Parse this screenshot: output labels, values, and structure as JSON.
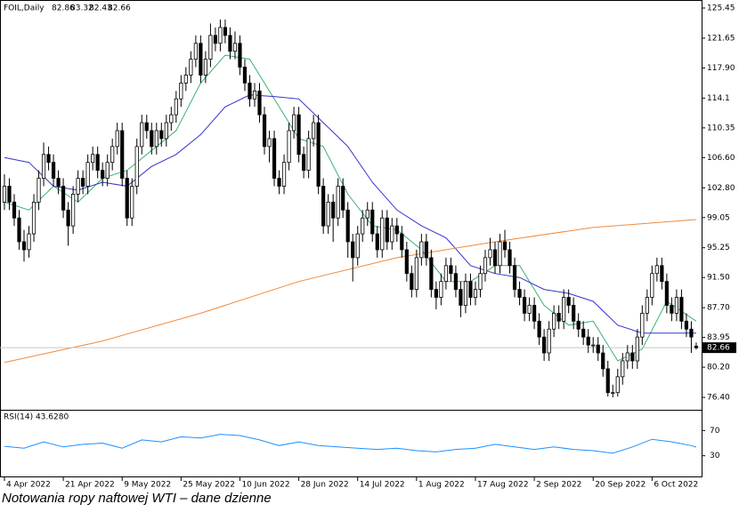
{
  "chart_data": {
    "type": "candlestick",
    "symbol": "FOIL,Daily",
    "caption": "Notowania ropy naftowej WTI – dane dzienne",
    "up_color": "#ffffff",
    "down_color": "#000000",
    "wick_color": "#000000",
    "open": [
      101,
      103,
      101,
      99,
      96,
      95,
      97,
      101,
      104,
      107,
      106,
      104,
      103,
      100,
      98,
      102,
      104,
      103,
      106,
      107,
      105,
      104,
      106,
      108,
      110,
      104,
      99,
      103,
      108,
      111,
      110,
      108,
      110,
      109,
      111,
      112,
      114,
      116,
      117,
      119,
      121,
      117,
      119,
      122,
      121,
      123,
      122,
      120,
      121,
      118,
      116,
      114,
      115,
      112,
      108,
      109,
      104,
      103,
      106,
      110,
      112,
      107,
      105,
      109,
      111,
      103,
      98,
      101,
      99,
      103,
      100,
      96,
      94,
      97,
      99,
      100,
      97,
      95,
      99,
      96,
      98,
      97,
      95,
      92,
      90,
      94,
      96,
      94,
      90,
      89,
      91,
      93,
      92,
      90,
      88,
      91,
      89,
      90,
      92,
      94,
      95,
      93,
      96,
      95,
      93,
      90,
      89,
      87,
      88,
      86,
      84,
      82,
      85,
      87,
      86,
      89,
      88,
      86,
      85,
      84,
      83,
      83,
      82,
      80,
      77,
      77,
      79,
      81,
      82,
      81,
      84,
      87,
      89,
      92,
      93,
      91,
      88,
      87,
      89,
      86,
      85,
      82.86
    ],
    "high": [
      104.5,
      104,
      102,
      100,
      97.5,
      98,
      102,
      105,
      108.5,
      108,
      107,
      105,
      104,
      101,
      103,
      105,
      105,
      107,
      108,
      108,
      106,
      107,
      109,
      111,
      111,
      105,
      104,
      109,
      112,
      112,
      111,
      111,
      111,
      112,
      113,
      115,
      117,
      118,
      120,
      122,
      122,
      120,
      123.5,
      123,
      124,
      124,
      123,
      122.5,
      122,
      119,
      117,
      116,
      116,
      113,
      110,
      110,
      105,
      107,
      111,
      113,
      113,
      108,
      110,
      112,
      112,
      104,
      102,
      102,
      104,
      104,
      101,
      97,
      98,
      100,
      101,
      101,
      98,
      100,
      100,
      99,
      99,
      98,
      96,
      93,
      95,
      97,
      97,
      95,
      91,
      92,
      94,
      94,
      93,
      91,
      92,
      92,
      91,
      93,
      95,
      96.5,
      96,
      97,
      97.5,
      96,
      94,
      91,
      90,
      89,
      89,
      87,
      85,
      86,
      88,
      88,
      90,
      90,
      89,
      87,
      86,
      85,
      84,
      84,
      83,
      81,
      78,
      80,
      82,
      83,
      83,
      85,
      88,
      90,
      93,
      94,
      94,
      92,
      89,
      90,
      90,
      87,
      86,
      83.32
    ],
    "low": [
      100,
      100,
      98,
      95,
      93.5,
      94,
      96,
      100,
      103,
      105,
      103,
      102,
      99,
      95.5,
      97,
      101,
      102,
      102,
      105,
      104,
      103,
      103,
      105,
      107,
      103,
      98,
      98,
      102,
      107,
      109,
      107,
      107,
      108,
      108,
      110,
      111,
      113,
      115,
      116,
      118,
      116,
      116,
      118,
      120,
      120,
      121,
      119,
      119,
      117,
      115,
      113,
      113,
      111,
      107,
      106,
      103,
      102,
      102,
      105,
      109,
      106,
      104,
      104,
      108,
      102,
      97,
      97,
      96,
      98,
      99,
      94,
      91,
      93,
      96,
      98,
      96,
      94,
      94,
      95,
      95,
      96,
      94,
      91,
      89,
      89,
      93,
      93,
      89,
      87.5,
      88,
      90,
      91,
      89,
      86.5,
      87,
      88,
      88,
      89,
      91,
      93,
      92,
      92,
      94,
      92,
      89,
      88,
      86,
      86,
      85,
      83,
      81,
      81,
      84,
      85,
      85,
      87,
      85,
      84,
      83,
      82,
      82,
      81,
      79,
      76.5,
      76.4,
      76.5,
      78,
      80,
      80,
      80,
      83,
      86,
      88,
      91,
      90,
      87,
      86,
      86,
      85,
      84,
      82,
      82.43
    ],
    "close": [
      103,
      101,
      99,
      96,
      95,
      97,
      101,
      104,
      107,
      106,
      104,
      103,
      100,
      98,
      102,
      104,
      103,
      106,
      107,
      105,
      104,
      106,
      108,
      110,
      104,
      99,
      103,
      108,
      111,
      110,
      108,
      110,
      109,
      111,
      112,
      114,
      116,
      117,
      119,
      121,
      117,
      119,
      122,
      121,
      123,
      122,
      120,
      121,
      118,
      116,
      114,
      115,
      112,
      108,
      109,
      104,
      103,
      106,
      110,
      112,
      107,
      105,
      109,
      111,
      103,
      98,
      101,
      99,
      103,
      100,
      96,
      94,
      97,
      99,
      100,
      97,
      95,
      99,
      96,
      98,
      97,
      95,
      92,
      90,
      94,
      96,
      94,
      90,
      89,
      91,
      93,
      92,
      90,
      88,
      91,
      89,
      90,
      92,
      94,
      95,
      93,
      96,
      95,
      93,
      90,
      89,
      87,
      88,
      86,
      84,
      82,
      85,
      87,
      86,
      89,
      88,
      86,
      85,
      84,
      83,
      83,
      82,
      80,
      77,
      77,
      79,
      81,
      82,
      81,
      84,
      87,
      89,
      92,
      93,
      91,
      88,
      87,
      89,
      86,
      85,
      84,
      82.66
    ],
    "moving_averages": [
      {
        "color": "#3cb371",
        "x": [
          0,
          5,
          10,
          15,
          20,
          25,
          30,
          35,
          40,
          45,
          50,
          55,
          60,
          65,
          70,
          75,
          80,
          85,
          90,
          95,
          100,
          105,
          110,
          115,
          120,
          125,
          130,
          135,
          141
        ],
        "values": [
          101,
          100,
          103,
          101,
          104,
          105,
          107.5,
          110,
          116,
          119.5,
          119,
          114,
          109,
          108,
          102,
          98,
          97.5,
          95,
          91,
          91,
          93,
          93,
          88,
          85.5,
          86,
          81,
          82.5,
          88.5,
          86
        ]
      },
      {
        "color": "#3333cc",
        "x": [
          0,
          5,
          10,
          15,
          20,
          25,
          30,
          35,
          40,
          45,
          50,
          55,
          60,
          65,
          70,
          75,
          80,
          85,
          90,
          95,
          100,
          105,
          110,
          115,
          120,
          125,
          130,
          135,
          141
        ],
        "values": [
          106.6,
          106,
          103,
          102.5,
          103.5,
          103,
          105.5,
          107,
          109.5,
          113,
          114.5,
          114.3,
          114,
          111,
          108,
          103.5,
          100,
          98,
          96.5,
          93,
          92,
          91.5,
          90,
          89.5,
          88.5,
          85.5,
          84.5,
          84.5,
          84.5
        ]
      },
      {
        "color": "#f08a3c",
        "x": [
          0,
          20,
          40,
          60,
          80,
          100,
          120,
          141
        ],
        "values": [
          80.8,
          83.5,
          87,
          91,
          94,
          96,
          97.8,
          98.8
        ]
      }
    ],
    "xlim": [
      -0.9,
      142.1
    ],
    "xticks": [
      {
        "value": 0,
        "label": "4 Apr 2022"
      },
      {
        "value": 12,
        "label": "21 Apr 2022"
      },
      {
        "value": 24,
        "label": "9 May 2022"
      },
      {
        "value": 36,
        "label": "25 May 2022"
      },
      {
        "value": 48,
        "label": "10 Jun 2022"
      },
      {
        "value": 60,
        "label": "28 Jun 2022"
      },
      {
        "value": 72,
        "label": "14 Jul 2022"
      },
      {
        "value": 84,
        "label": "1 Aug 2022"
      },
      {
        "value": 96,
        "label": "17 Aug 2022"
      },
      {
        "value": 108,
        "label": "2 Sep 2022"
      },
      {
        "value": 120,
        "label": "20 Sep 2022"
      },
      {
        "value": 132,
        "label": "6 Oct 2022"
      }
    ],
    "ylim": [
      74.95,
      126.01
    ],
    "yticks": [
      125.45,
      121.65,
      {
        "value": 117.9,
        "label": "117.90"
      },
      114.1,
      110.35,
      {
        "value": 106.6,
        "label": "106.60"
      },
      {
        "value": 102.8,
        "label": "102.80"
      },
      99.05,
      95.25,
      {
        "value": 91.5,
        "label": "91.50"
      },
      {
        "value": 87.7,
        "label": "87.70"
      },
      83.95,
      {
        "value": 80.2,
        "label": "80.20"
      },
      {
        "value": 76.4,
        "label": "76.40"
      }
    ],
    "rsi": {
      "label": "RSI(14) 43.6280",
      "color": "#1e90ff",
      "x": [
        0,
        4,
        8,
        12,
        16,
        20,
        24,
        28,
        32,
        36,
        40,
        44,
        48,
        52,
        56,
        60,
        64,
        68,
        72,
        76,
        80,
        84,
        88,
        92,
        96,
        100,
        104,
        108,
        112,
        116,
        120,
        124,
        128,
        132,
        136,
        140,
        141
      ],
      "values": [
        45,
        42,
        52,
        44,
        48,
        50,
        42,
        55,
        52,
        60,
        58,
        64,
        62,
        55,
        46,
        52,
        46,
        44,
        42,
        40,
        42,
        38,
        36,
        40,
        42,
        48,
        44,
        40,
        44,
        40,
        38,
        34,
        44,
        56,
        52,
        46,
        43.628
      ],
      "ylim": [
        0,
        100
      ],
      "yticks": [
        70,
        30
      ]
    }
  }
}
